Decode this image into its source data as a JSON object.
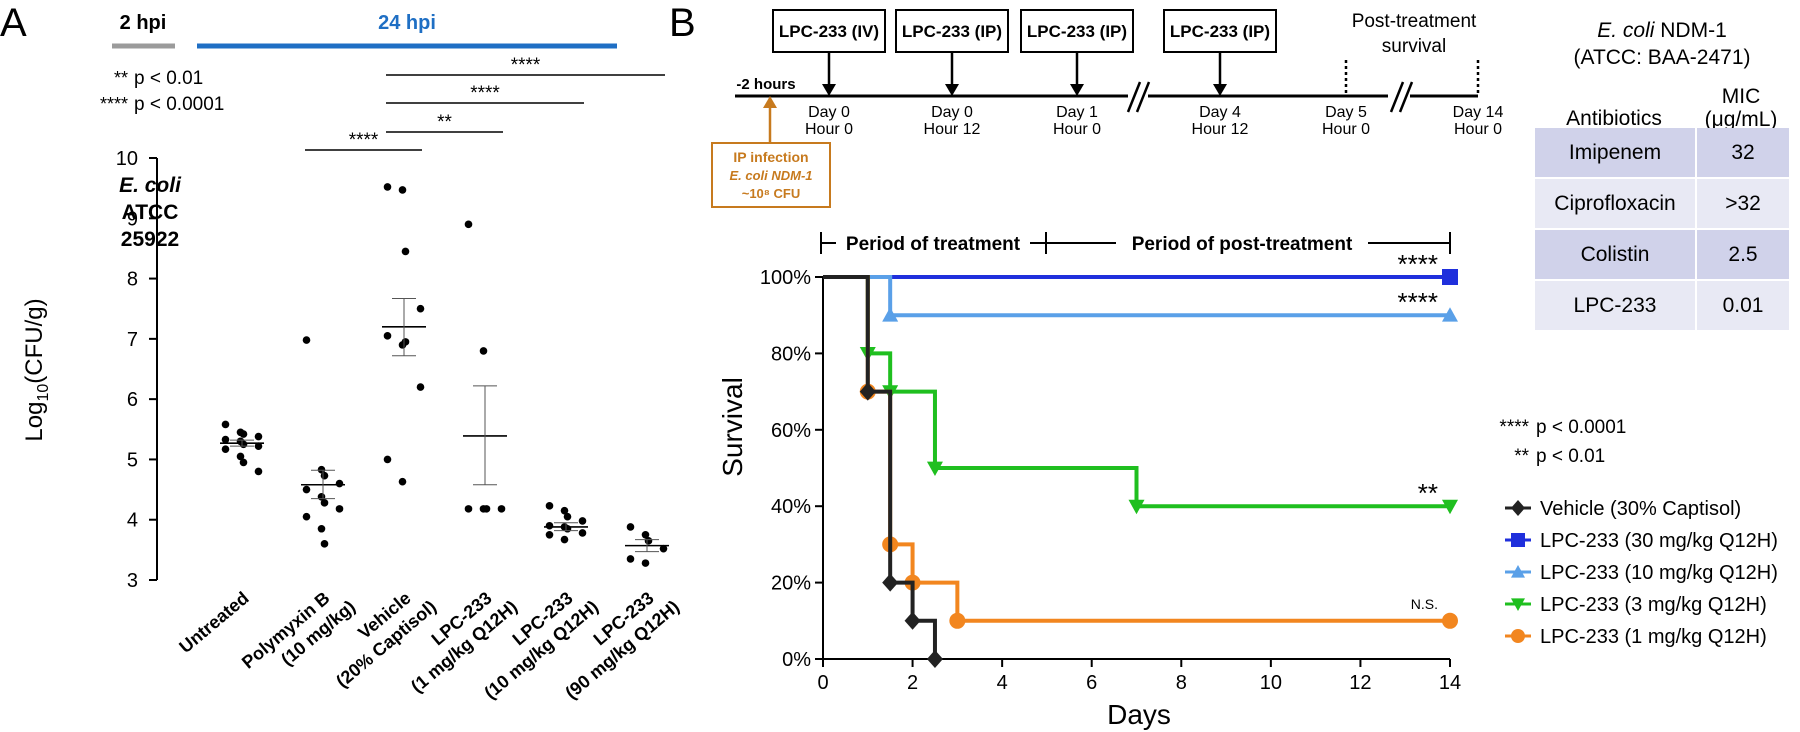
{
  "panel_labels": {
    "a": "A",
    "b": "B"
  },
  "chart_data": [
    {
      "type": "scatter",
      "panel": "A",
      "title": "",
      "ylabel": "Log10(CFU/g)",
      "ylim": [
        3,
        10
      ],
      "yticks": [
        3,
        4,
        5,
        6,
        7,
        8,
        9,
        10
      ],
      "timepoints": [
        {
          "label": "2 hpi",
          "groups": [
            0
          ],
          "color": "#9b9b9b"
        },
        {
          "label": "24 hpi",
          "groups": [
            1,
            2,
            3,
            4,
            5
          ],
          "color": "#1f6fc4"
        }
      ],
      "legend_pvalues": [
        {
          "stars": "**",
          "label": "p < 0.01"
        },
        {
          "stars": "****",
          "label": "p < 0.0001"
        }
      ],
      "annotation_lines": [
        "E. coli",
        "ATCC",
        "25922"
      ],
      "groups": [
        {
          "line1": "Untreated",
          "line2": "",
          "points": [
            5.58,
            5.45,
            5.42,
            5.38,
            5.33,
            5.3,
            5.25,
            5.22,
            5.17,
            5.05,
            4.95,
            4.8
          ],
          "mean": 5.27,
          "sem_low": 5.22,
          "sem_high": 5.32
        },
        {
          "line1": "Polymyxin B",
          "line2": "(10 mg/kg)",
          "points": [
            6.98,
            4.83,
            4.73,
            4.6,
            4.5,
            4.38,
            4.28,
            4.18,
            4.05,
            3.85,
            3.6
          ],
          "mean": 4.58,
          "sem_low": 4.35,
          "sem_high": 4.82
        },
        {
          "line1": "Vehicle",
          "line2": "(20% Captisol)",
          "points": [
            9.52,
            9.47,
            8.45,
            7.5,
            7.05,
            6.9,
            6.95,
            6.2,
            5.0,
            4.63
          ],
          "mean": 7.2,
          "sem_low": 6.72,
          "sem_high": 7.67
        },
        {
          "line1": "LPC-233",
          "line2": "(1 mg/kg Q12H)",
          "points": [
            8.9,
            6.8,
            4.18,
            4.18,
            4.18,
            4.18
          ],
          "mean": 5.39,
          "sem_low": 4.58,
          "sem_high": 6.22
        },
        {
          "line1": "LPC-233",
          "line2": "(10 mg/kg Q12H)",
          "points": [
            4.23,
            4.15,
            4.05,
            3.98,
            3.9,
            3.88,
            3.85,
            3.78,
            3.75,
            3.67
          ],
          "mean": 3.88,
          "sem_low": 3.82,
          "sem_high": 3.95
        },
        {
          "line1": "LPC-233",
          "line2": "(90 mg/kg Q12H)",
          "points": [
            3.88,
            3.75,
            3.65,
            3.52,
            3.35,
            3.28
          ],
          "mean": 3.57,
          "sem_low": 3.47,
          "sem_high": 3.67
        }
      ],
      "significance": [
        {
          "from": 1,
          "to": 2,
          "label": "****"
        },
        {
          "from": 2,
          "to": 3,
          "label": "**"
        },
        {
          "from": 2,
          "to": 4,
          "label": "****"
        },
        {
          "from": 2,
          "to": 5,
          "label": "****"
        }
      ]
    },
    {
      "type": "line",
      "panel": "B",
      "title": "",
      "xlabel": "Days",
      "ylabel": "Survival",
      "xlim": [
        0,
        14
      ],
      "ylim": [
        0,
        100
      ],
      "xticks": [
        0,
        2,
        4,
        6,
        8,
        10,
        12,
        14
      ],
      "yticks": [
        0,
        20,
        40,
        60,
        80,
        100
      ],
      "ytick_labels": [
        "0%",
        "20%",
        "40%",
        "60%",
        "80%",
        "100%"
      ],
      "periods": {
        "treatment": "Period of treatment",
        "post": "Period of post-treatment",
        "split_day": 5,
        "end_day": 14
      },
      "series": [
        {
          "name": "Vehicle (30% Captisol)",
          "color": "#222222",
          "marker": "diamond",
          "steps": [
            [
              0,
              100
            ],
            [
              1,
              70
            ],
            [
              1.5,
              20
            ],
            [
              2,
              10
            ],
            [
              2.5,
              0
            ]
          ],
          "end_day": 2.5,
          "significance": ""
        },
        {
          "name": "LPC-233 (30 mg/kg Q12H)",
          "color": "#1f2fdc",
          "marker": "square",
          "steps": [
            [
              0,
              100
            ]
          ],
          "end_day": 14,
          "significance": "****"
        },
        {
          "name": "LPC-233 (10 mg/kg Q12H)",
          "color": "#5aa0e8",
          "marker": "triangle-up",
          "steps": [
            [
              0,
              100
            ],
            [
              1.5,
              90
            ]
          ],
          "end_day": 14,
          "significance": "****"
        },
        {
          "name": "LPC-233 (3 mg/kg Q12H)",
          "color": "#1fbf1f",
          "marker": "triangle-down",
          "steps": [
            [
              0,
              100
            ],
            [
              1,
              80
            ],
            [
              1.5,
              70
            ],
            [
              2.5,
              50
            ],
            [
              7,
              40
            ]
          ],
          "end_day": 14,
          "significance": "**"
        },
        {
          "name": "LPC-233 (1 mg/kg Q12H)",
          "color": "#f2861f",
          "marker": "circle",
          "steps": [
            [
              0,
              100
            ],
            [
              1,
              70
            ],
            [
              1.5,
              30
            ],
            [
              2,
              20
            ],
            [
              3,
              10
            ]
          ],
          "end_day": 14,
          "significance": "N.S."
        }
      ],
      "legend_pvalues": [
        {
          "stars": "****",
          "label": "p < 0.0001"
        },
        {
          "stars": "**",
          "label": "p < 0.01"
        }
      ]
    }
  ],
  "timeline": {
    "infection_time": "-2 hours",
    "infection_box": [
      "IP infection",
      "E. coli NDM-1",
      "~10⁸ CFU"
    ],
    "events": [
      {
        "box": "LPC-233 (IV)",
        "day": "Day 0",
        "hour": "Hour 0"
      },
      {
        "box": "LPC-233 (IP)",
        "day": "Day 0",
        "hour": "Hour 12"
      },
      {
        "box": "LPC-233 (IP)",
        "day": "Day 1",
        "hour": "Hour 0"
      },
      {
        "box": "LPC-233 (IP)",
        "day": "Day 4",
        "hour": "Hour 12"
      },
      {
        "box": "",
        "day": "Day 5",
        "hour": "Hour 0"
      },
      {
        "box": "",
        "day": "Day 14",
        "hour": "Hour 0"
      }
    ],
    "post_treatment": [
      "Post-treatment",
      "survival"
    ]
  },
  "mic_table": {
    "strain_name": "E. coli",
    "strain_rest": "NDM-1",
    "strain_id": "(ATCC: BAA-2471)",
    "col1": "Antibiotics",
    "col2_l1": "MIC",
    "col2_l2": "(μg/mL)",
    "rows": [
      {
        "antibiotic": "Imipenem",
        "mic": "32"
      },
      {
        "antibiotic": "Ciprofloxacin",
        "mic": ">32"
      },
      {
        "antibiotic": "Colistin",
        "mic": "2.5"
      },
      {
        "antibiotic": "LPC-233",
        "mic": "0.01"
      }
    ]
  },
  "colors": {
    "orange": "#c77a1e",
    "table_dark": "#d0d2ea",
    "table_light": "#e8e9f4"
  }
}
